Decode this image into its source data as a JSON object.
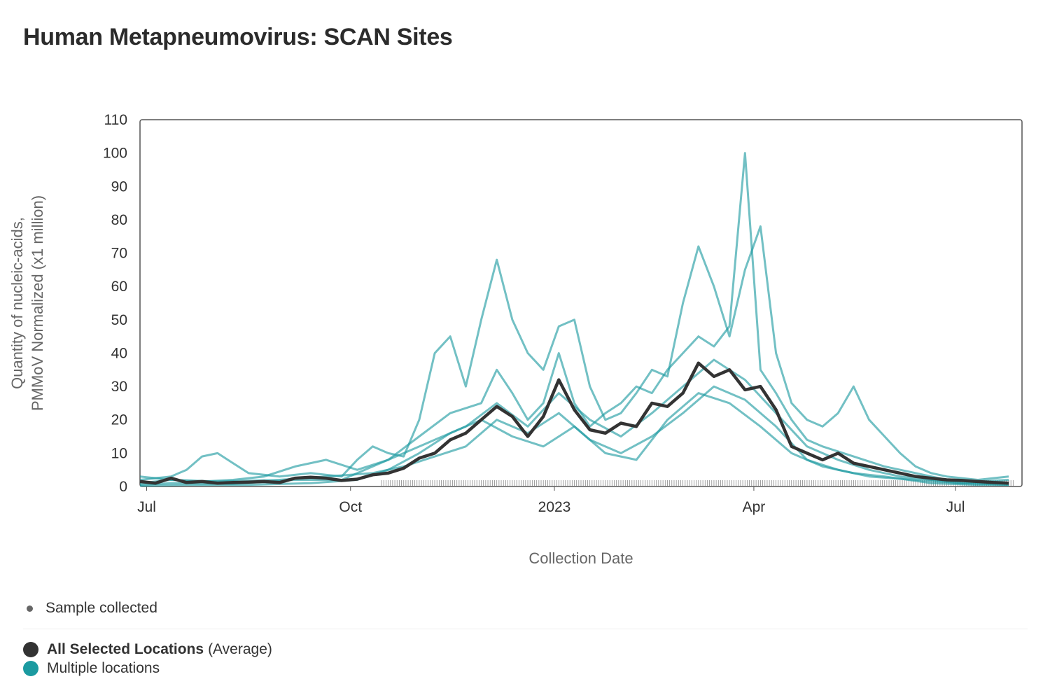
{
  "title": "Human Metapneumovirus: SCAN Sites",
  "legend": {
    "sample_label": "Sample collected",
    "avg_name": "All Selected Locations",
    "avg_suffix": "(Average)",
    "multi_name": "Multiple locations"
  },
  "colors": {
    "average": "#333333",
    "locations": "#1b9aa0",
    "location_line_opacity": 0.62,
    "axis_border": "#555555"
  },
  "chart_data": {
    "type": "line",
    "title": "Human Metapneumovirus: SCAN Sites",
    "xlabel": "Collection Date",
    "ylabel": [
      "Quantity of nucleic-acids,",
      "PMMoV Normalized (x1 million)"
    ],
    "xlim": [
      "2022-06-28",
      "2023-07-31"
    ],
    "ylim": [
      0,
      110
    ],
    "y_ticks": [
      "0",
      "10",
      "20",
      "30",
      "40",
      "50",
      "60",
      "70",
      "80",
      "90",
      "100",
      "110"
    ],
    "x_ticks": [
      {
        "date": "2022-07-01",
        "label": "Jul"
      },
      {
        "date": "2022-10-01",
        "label": "Oct"
      },
      {
        "date": "2023-01-01",
        "label": "2023"
      },
      {
        "date": "2023-04-01",
        "label": "Apr"
      },
      {
        "date": "2023-07-01",
        "label": "Jul"
      }
    ],
    "grid": false,
    "series": [
      {
        "name": "All Selected Locations",
        "role": "average",
        "points": [
          [
            "2022-06-28",
            1.5
          ],
          [
            "2022-07-05",
            1
          ],
          [
            "2022-07-12",
            2.5
          ],
          [
            "2022-07-19",
            1.2
          ],
          [
            "2022-07-26",
            1.5
          ],
          [
            "2022-08-02",
            1
          ],
          [
            "2022-08-09",
            1.2
          ],
          [
            "2022-08-16",
            1.3
          ],
          [
            "2022-08-23",
            1.5
          ],
          [
            "2022-08-30",
            1.2
          ],
          [
            "2022-09-06",
            2.5
          ],
          [
            "2022-09-13",
            2.8
          ],
          [
            "2022-09-20",
            2.5
          ],
          [
            "2022-09-27",
            1.8
          ],
          [
            "2022-10-04",
            2.2
          ],
          [
            "2022-10-11",
            3.5
          ],
          [
            "2022-10-18",
            4
          ],
          [
            "2022-10-25",
            5.5
          ],
          [
            "2022-11-01",
            8.5
          ],
          [
            "2022-11-08",
            10
          ],
          [
            "2022-11-15",
            14
          ],
          [
            "2022-11-22",
            16
          ],
          [
            "2022-11-29",
            20
          ],
          [
            "2022-12-06",
            24
          ],
          [
            "2022-12-13",
            21
          ],
          [
            "2022-12-20",
            15
          ],
          [
            "2022-12-27",
            21
          ],
          [
            "2023-01-03",
            32
          ],
          [
            "2023-01-10",
            23
          ],
          [
            "2023-01-17",
            17
          ],
          [
            "2023-01-24",
            16
          ],
          [
            "2023-01-31",
            19
          ],
          [
            "2023-02-07",
            18
          ],
          [
            "2023-02-14",
            25
          ],
          [
            "2023-02-21",
            24
          ],
          [
            "2023-02-28",
            28
          ],
          [
            "2023-03-07",
            37
          ],
          [
            "2023-03-14",
            33
          ],
          [
            "2023-03-21",
            35
          ],
          [
            "2023-03-28",
            29
          ],
          [
            "2023-04-04",
            30
          ],
          [
            "2023-04-11",
            23
          ],
          [
            "2023-04-18",
            12
          ],
          [
            "2023-04-25",
            10
          ],
          [
            "2023-05-02",
            8
          ],
          [
            "2023-05-09",
            10
          ],
          [
            "2023-05-16",
            7
          ],
          [
            "2023-05-23",
            6
          ],
          [
            "2023-05-30",
            5
          ],
          [
            "2023-06-06",
            4
          ],
          [
            "2023-06-13",
            3
          ],
          [
            "2023-06-20",
            2.5
          ],
          [
            "2023-06-27",
            2
          ],
          [
            "2023-07-04",
            1.8
          ],
          [
            "2023-07-11",
            1.5
          ],
          [
            "2023-07-18",
            1.2
          ],
          [
            "2023-07-25",
            1
          ]
        ]
      },
      {
        "role": "location",
        "points": [
          [
            "2022-06-28",
            2
          ],
          [
            "2022-07-12",
            3
          ],
          [
            "2022-07-19",
            5
          ],
          [
            "2022-07-26",
            9
          ],
          [
            "2022-08-02",
            10
          ],
          [
            "2022-08-09",
            7
          ],
          [
            "2022-08-16",
            4
          ],
          [
            "2022-08-30",
            3
          ],
          [
            "2022-09-13",
            4
          ],
          [
            "2022-09-27",
            3
          ],
          [
            "2022-10-04",
            8
          ],
          [
            "2022-10-11",
            12
          ],
          [
            "2022-10-18",
            10
          ],
          [
            "2022-10-25",
            9
          ],
          [
            "2022-11-01",
            20
          ],
          [
            "2022-11-08",
            40
          ],
          [
            "2022-11-15",
            45
          ],
          [
            "2022-11-22",
            30
          ],
          [
            "2022-11-29",
            50
          ],
          [
            "2022-12-06",
            68
          ],
          [
            "2022-12-13",
            50
          ],
          [
            "2022-12-20",
            40
          ],
          [
            "2022-12-27",
            35
          ],
          [
            "2023-01-03",
            48
          ],
          [
            "2023-01-10",
            50
          ],
          [
            "2023-01-17",
            30
          ],
          [
            "2023-01-24",
            20
          ],
          [
            "2023-01-31",
            22
          ],
          [
            "2023-02-07",
            28
          ],
          [
            "2023-02-14",
            35
          ],
          [
            "2023-02-21",
            33
          ],
          [
            "2023-02-28",
            55
          ],
          [
            "2023-03-07",
            72
          ],
          [
            "2023-03-14",
            60
          ],
          [
            "2023-03-21",
            45
          ],
          [
            "2023-03-28",
            65
          ],
          [
            "2023-04-04",
            78
          ],
          [
            "2023-04-11",
            40
          ],
          [
            "2023-04-18",
            25
          ],
          [
            "2023-04-25",
            20
          ],
          [
            "2023-05-02",
            18
          ],
          [
            "2023-05-09",
            22
          ],
          [
            "2023-05-16",
            30
          ],
          [
            "2023-05-23",
            20
          ],
          [
            "2023-05-30",
            15
          ],
          [
            "2023-06-06",
            10
          ],
          [
            "2023-06-13",
            6
          ],
          [
            "2023-06-20",
            4
          ],
          [
            "2023-06-27",
            3
          ],
          [
            "2023-07-11",
            2
          ],
          [
            "2023-07-25",
            3
          ]
        ]
      },
      {
        "role": "location",
        "points": [
          [
            "2022-06-28",
            1
          ],
          [
            "2022-07-12",
            2
          ],
          [
            "2022-07-26",
            1.5
          ],
          [
            "2022-08-09",
            2
          ],
          [
            "2022-08-23",
            3
          ],
          [
            "2022-09-06",
            6
          ],
          [
            "2022-09-20",
            8
          ],
          [
            "2022-10-04",
            5
          ],
          [
            "2022-10-18",
            8
          ],
          [
            "2022-11-01",
            15
          ],
          [
            "2022-11-15",
            22
          ],
          [
            "2022-11-29",
            25
          ],
          [
            "2022-12-06",
            35
          ],
          [
            "2022-12-13",
            28
          ],
          [
            "2022-12-20",
            20
          ],
          [
            "2022-12-27",
            25
          ],
          [
            "2023-01-03",
            40
          ],
          [
            "2023-01-10",
            25
          ],
          [
            "2023-01-17",
            18
          ],
          [
            "2023-01-24",
            22
          ],
          [
            "2023-01-31",
            25
          ],
          [
            "2023-02-07",
            30
          ],
          [
            "2023-02-14",
            28
          ],
          [
            "2023-02-21",
            35
          ],
          [
            "2023-02-28",
            40
          ],
          [
            "2023-03-07",
            45
          ],
          [
            "2023-03-14",
            42
          ],
          [
            "2023-03-21",
            48
          ],
          [
            "2023-03-28",
            100
          ],
          [
            "2023-04-04",
            35
          ],
          [
            "2023-04-11",
            28
          ],
          [
            "2023-04-18",
            20
          ],
          [
            "2023-04-25",
            14
          ],
          [
            "2023-05-02",
            12
          ],
          [
            "2023-05-16",
            9
          ],
          [
            "2023-05-30",
            6
          ],
          [
            "2023-06-13",
            4
          ],
          [
            "2023-06-27",
            2
          ],
          [
            "2023-07-11",
            1.5
          ],
          [
            "2023-07-25",
            2
          ]
        ]
      },
      {
        "role": "location",
        "points": [
          [
            "2022-06-28",
            0.5
          ],
          [
            "2022-07-12",
            1
          ],
          [
            "2022-08-09",
            0.8
          ],
          [
            "2022-09-06",
            2
          ],
          [
            "2022-09-27",
            2
          ],
          [
            "2022-10-11",
            6
          ],
          [
            "2022-10-25",
            10
          ],
          [
            "2022-11-08",
            14
          ],
          [
            "2022-11-22",
            18
          ],
          [
            "2022-12-06",
            25
          ],
          [
            "2022-12-20",
            18
          ],
          [
            "2023-01-03",
            28
          ],
          [
            "2023-01-17",
            20
          ],
          [
            "2023-01-31",
            15
          ],
          [
            "2023-02-14",
            22
          ],
          [
            "2023-02-28",
            30
          ],
          [
            "2023-03-14",
            38
          ],
          [
            "2023-03-28",
            32
          ],
          [
            "2023-04-11",
            22
          ],
          [
            "2023-04-25",
            12
          ],
          [
            "2023-05-09",
            8
          ],
          [
            "2023-05-23",
            5
          ],
          [
            "2023-06-06",
            3
          ],
          [
            "2023-06-20",
            2
          ],
          [
            "2023-07-04",
            1
          ],
          [
            "2023-07-25",
            0.5
          ]
        ]
      },
      {
        "role": "location",
        "points": [
          [
            "2022-06-28",
            0.2
          ],
          [
            "2022-07-19",
            0.5
          ],
          [
            "2022-08-16",
            0.5
          ],
          [
            "2022-09-13",
            1
          ],
          [
            "2022-10-04",
            2
          ],
          [
            "2022-10-18",
            5
          ],
          [
            "2022-11-01",
            10
          ],
          [
            "2022-11-15",
            16
          ],
          [
            "2022-11-29",
            20
          ],
          [
            "2022-12-13",
            15
          ],
          [
            "2022-12-27",
            12
          ],
          [
            "2023-01-10",
            18
          ],
          [
            "2023-01-24",
            10
          ],
          [
            "2023-02-07",
            8
          ],
          [
            "2023-02-21",
            20
          ],
          [
            "2023-03-07",
            28
          ],
          [
            "2023-03-21",
            25
          ],
          [
            "2023-04-04",
            18
          ],
          [
            "2023-04-18",
            10
          ],
          [
            "2023-05-02",
            6
          ],
          [
            "2023-05-16",
            4
          ],
          [
            "2023-05-30",
            3
          ],
          [
            "2023-06-20",
            1
          ],
          [
            "2023-07-11",
            0.5
          ],
          [
            "2023-07-25",
            0.5
          ]
        ]
      },
      {
        "role": "location",
        "points": [
          [
            "2022-06-28",
            3
          ],
          [
            "2022-07-12",
            2
          ],
          [
            "2022-08-02",
            1.5
          ],
          [
            "2022-08-30",
            2
          ],
          [
            "2022-09-20",
            3
          ],
          [
            "2022-10-11",
            4
          ],
          [
            "2022-10-25",
            6
          ],
          [
            "2022-11-08",
            9
          ],
          [
            "2022-11-22",
            12
          ],
          [
            "2022-12-06",
            20
          ],
          [
            "2022-12-20",
            16
          ],
          [
            "2023-01-03",
            22
          ],
          [
            "2023-01-17",
            14
          ],
          [
            "2023-01-31",
            10
          ],
          [
            "2023-02-14",
            15
          ],
          [
            "2023-02-28",
            22
          ],
          [
            "2023-03-14",
            30
          ],
          [
            "2023-03-28",
            26
          ],
          [
            "2023-04-11",
            18
          ],
          [
            "2023-04-25",
            8
          ],
          [
            "2023-05-09",
            5
          ],
          [
            "2023-05-23",
            3
          ],
          [
            "2023-06-13",
            2
          ],
          [
            "2023-07-04",
            1
          ],
          [
            "2023-07-25",
            1
          ]
        ]
      }
    ]
  }
}
